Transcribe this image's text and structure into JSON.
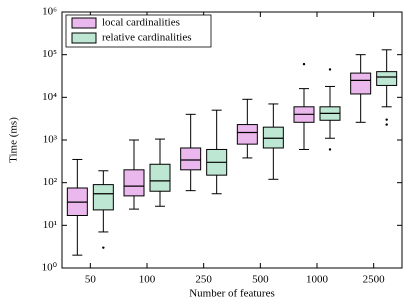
{
  "chart_data": {
    "type": "box",
    "x_label": "Number of features",
    "y_label": "Time (ms)",
    "categories": [
      "50",
      "100",
      "250",
      "500",
      "1000",
      "2500"
    ],
    "log_y": true,
    "ylim": [
      1,
      1000000
    ],
    "yticks": [
      {
        "value": 1,
        "label": "10⁰"
      },
      {
        "value": 10,
        "label": "10¹"
      },
      {
        "value": 100,
        "label": "10²"
      },
      {
        "value": 1000,
        "label": "10³"
      },
      {
        "value": 10000,
        "label": "10⁴"
      },
      {
        "value": 100000,
        "label": "10⁵"
      },
      {
        "value": 1000000,
        "label": "10⁶"
      }
    ],
    "legend": "upper left",
    "series": [
      {
        "name": "local cardinalities",
        "color": "#ebb8ee",
        "stats": [
          {
            "whislo": 2,
            "q1": 17,
            "med": 35,
            "q3": 75,
            "whishi": 350,
            "fliers": []
          },
          {
            "whislo": 24,
            "q1": 49,
            "med": 83,
            "q3": 200,
            "whishi": 1000,
            "fliers": []
          },
          {
            "whislo": 65,
            "q1": 200,
            "med": 340,
            "q3": 650,
            "whishi": 4000,
            "fliers": []
          },
          {
            "whislo": 380,
            "q1": 800,
            "med": 1500,
            "q3": 2300,
            "whishi": 9000,
            "fliers": []
          },
          {
            "whislo": 600,
            "q1": 2600,
            "med": 4000,
            "q3": 6000,
            "whishi": 16000,
            "fliers": [
              60000
            ]
          },
          {
            "whislo": 2600,
            "q1": 12000,
            "med": 25000,
            "q3": 37000,
            "whishi": 100000,
            "fliers": []
          }
        ]
      },
      {
        "name": "relative cardinalities",
        "color": "#bde6d3",
        "stats": [
          {
            "whislo": 7,
            "q1": 23,
            "med": 55,
            "q3": 90,
            "whishi": 190,
            "fliers": [
              3
            ]
          },
          {
            "whislo": 28,
            "q1": 63,
            "med": 110,
            "q3": 270,
            "whishi": 1050,
            "fliers": []
          },
          {
            "whislo": 55,
            "q1": 150,
            "med": 300,
            "q3": 600,
            "whishi": 5000,
            "fliers": []
          },
          {
            "whislo": 120,
            "q1": 650,
            "med": 1100,
            "q3": 2000,
            "whishi": 7000,
            "fliers": []
          },
          {
            "whislo": 1100,
            "q1": 2900,
            "med": 4200,
            "q3": 6000,
            "whishi": 18000,
            "fliers": [
              45000,
              600
            ]
          },
          {
            "whislo": 6000,
            "q1": 19000,
            "med": 30000,
            "q3": 40000,
            "whishi": 130000,
            "fliers": [
              3000,
              2300
            ]
          }
        ]
      }
    ]
  }
}
